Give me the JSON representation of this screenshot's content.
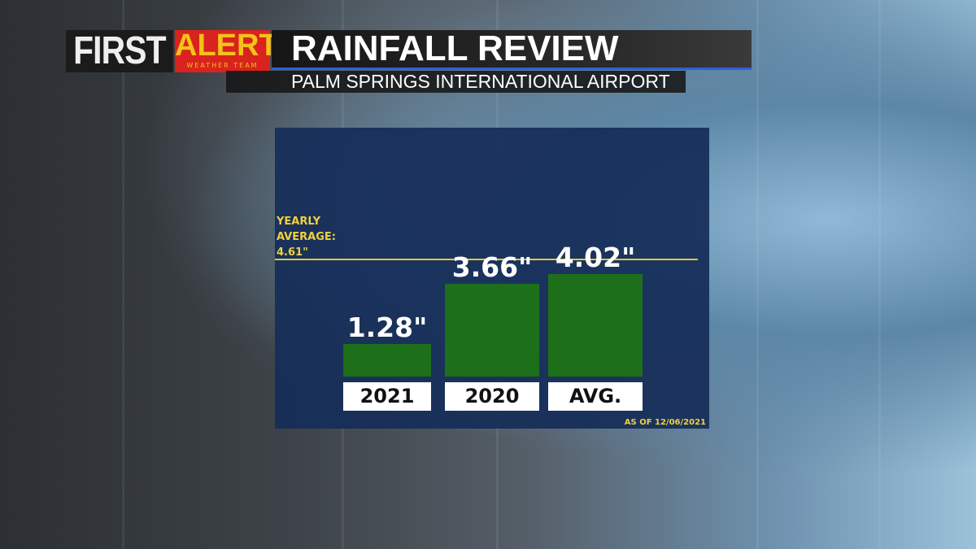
{
  "header": {
    "logo_first": "FIRST",
    "logo_alert": "ALERT",
    "logo_team": "WEATHER TEAM",
    "title": "RAINFALL REVIEW",
    "subtitle": "PALM SPRINGS INTERNATIONAL AIRPORT"
  },
  "chart_data": {
    "type": "bar",
    "title": "RAINFALL REVIEW",
    "subtitle": "PALM SPRINGS INTERNATIONAL AIRPORT",
    "categories": [
      "2021",
      "2020",
      "AVG."
    ],
    "values": [
      1.28,
      3.66,
      4.02
    ],
    "value_labels": [
      "1.28\"",
      "3.66\"",
      "4.02\""
    ],
    "unit": "inches",
    "reference_line": {
      "value": 4.61,
      "label_lines": [
        "YEARLY",
        "AVERAGE:",
        "4.61\""
      ]
    },
    "ylim": [
      0,
      4.61
    ],
    "grid": false,
    "footnote": "AS OF 12/06/2021",
    "colors": {
      "bar": "#1d6f1a",
      "reference": "#e0c93a",
      "panel": "#162d58"
    }
  }
}
